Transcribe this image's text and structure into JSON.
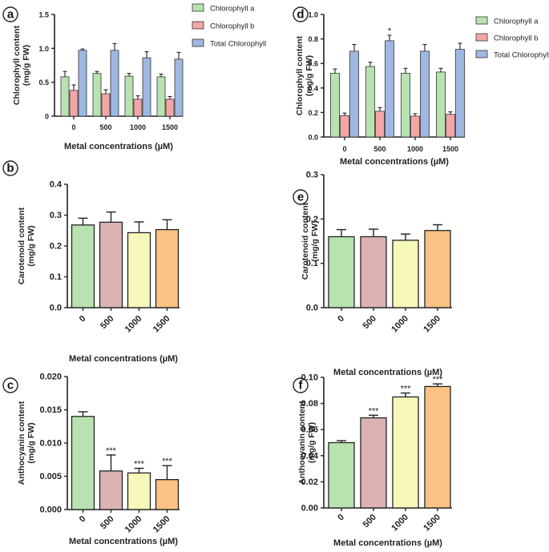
{
  "figure": {
    "chart_data": [
      {
        "panel": "a",
        "type": "bar",
        "title": "",
        "xlabel": "Metal concentrations (µM)",
        "ylabel": "Chlorophyll content (mg/g FW)",
        "ylabel_lines": [
          "Chlorophyll content",
          "(mg/g FW)"
        ],
        "categories": [
          "0",
          "500",
          "1000",
          "1500"
        ],
        "ylim": [
          0,
          1.5
        ],
        "yticks": [
          0,
          0.5,
          1.0,
          1.5
        ],
        "ytick_labels": [
          "0",
          "0.5",
          "1.0",
          "1.5"
        ],
        "legend": "right",
        "series": [
          {
            "name": "Chlorophyll a",
            "color": "#b8e3b0",
            "values": [
              0.58,
              0.63,
              0.59,
              0.58
            ],
            "errors": [
              0.08,
              0.03,
              0.04,
              0.04
            ],
            "significance": [
              "",
              "",
              "",
              ""
            ]
          },
          {
            "name": "Chlorophyll b",
            "color": "#f4a6a6",
            "values": [
              0.38,
              0.33,
              0.25,
              0.25
            ],
            "errors": [
              0.08,
              0.06,
              0.05,
              0.04
            ],
            "significance": [
              "",
              "",
              "",
              ""
            ]
          },
          {
            "name": "Total Chlorophyll",
            "color": "#9fb8e2",
            "values": [
              0.97,
              0.97,
              0.86,
              0.84
            ],
            "errors": [
              0.02,
              0.1,
              0.09,
              0.1
            ],
            "significance": [
              "",
              "",
              "",
              ""
            ]
          }
        ]
      },
      {
        "panel": "b",
        "type": "bar",
        "title": "",
        "xlabel": "Metal concentrations (µM)",
        "ylabel": "Carotenoid content (mg/g FW)",
        "ylabel_lines": [
          "Carotenoid content",
          "(mg/g FW)"
        ],
        "categories": [
          "0",
          "500",
          "1000",
          "1500"
        ],
        "ylim": [
          0,
          0.4
        ],
        "yticks": [
          0,
          0.1,
          0.2,
          0.3,
          0.4
        ],
        "ytick_labels": [
          "0.0",
          "0.1",
          "0.2",
          "0.3",
          "0.4"
        ],
        "legend": "none",
        "series": [
          {
            "name": "Carotenoid",
            "colors": [
              "#b8e3b0",
              "#dcb2b2",
              "#f5f8b8",
              "#fbc285"
            ],
            "values": [
              0.268,
              0.277,
              0.243,
              0.253
            ],
            "errors": [
              0.022,
              0.033,
              0.035,
              0.032
            ],
            "significance": [
              "",
              "",
              "",
              ""
            ]
          }
        ]
      },
      {
        "panel": "c",
        "type": "bar",
        "title": "",
        "xlabel": "Metal concentrations (µM)",
        "ylabel": "Anthocyanin content (mg/g FW)",
        "ylabel_lines": [
          "Anthocyanin content",
          "(mg/g FW)"
        ],
        "categories": [
          "0",
          "500",
          "1000",
          "1500"
        ],
        "ylim": [
          0,
          0.02
        ],
        "yticks": [
          0,
          0.005,
          0.01,
          0.015,
          0.02
        ],
        "ytick_labels": [
          "0.000",
          "0.005",
          "0.010",
          "0.015",
          "0.020"
        ],
        "legend": "none",
        "series": [
          {
            "name": "Anthocyanin",
            "colors": [
              "#b8e3b0",
              "#dcb2b2",
              "#f5f8b8",
              "#fbc285"
            ],
            "values": [
              0.014,
              0.0058,
              0.0055,
              0.0045
            ],
            "errors": [
              0.0007,
              0.0024,
              0.0007,
              0.0021
            ],
            "significance": [
              "",
              "***",
              "***",
              "***"
            ]
          }
        ]
      },
      {
        "panel": "d",
        "type": "bar",
        "title": "",
        "xlabel": "Metal concentrations (µM)",
        "ylabel": "Chlorophyll content (mg/g FW)",
        "ylabel_lines": [
          "Chlorophyll content",
          "(mg/g FW)"
        ],
        "categories": [
          "0",
          "500",
          "1000",
          "1500"
        ],
        "ylim": [
          0,
          1.0
        ],
        "yticks": [
          0,
          0.2,
          0.4,
          0.6,
          0.8,
          1.0
        ],
        "ytick_labels": [
          "0.0",
          "0.2",
          "0.4",
          "0.6",
          "0.8",
          "1.0"
        ],
        "legend": "right",
        "series": [
          {
            "name": "Chlorophyll a",
            "color": "#b8e3b0",
            "values": [
              0.52,
              0.575,
              0.52,
              0.53
            ],
            "errors": [
              0.035,
              0.035,
              0.04,
              0.03
            ],
            "significance": [
              "",
              "",
              "",
              ""
            ]
          },
          {
            "name": "Chlorophyll b",
            "color": "#f4a6a6",
            "values": [
              0.175,
              0.21,
              0.17,
              0.185
            ],
            "errors": [
              0.02,
              0.03,
              0.02,
              0.02
            ],
            "significance": [
              "",
              "",
              "",
              ""
            ]
          },
          {
            "name": "Total Chlorophyll",
            "color": "#9fb8e2",
            "values": [
              0.7,
              0.785,
              0.7,
              0.715
            ],
            "errors": [
              0.055,
              0.045,
              0.055,
              0.05
            ],
            "significance": [
              "",
              "*",
              "",
              ""
            ]
          }
        ]
      },
      {
        "panel": "e",
        "type": "bar",
        "title": "",
        "xlabel": "Metal concentrations (µM)",
        "ylabel": "Carotenoid content (mg/g FW)",
        "ylabel_lines": [
          "Carotenoid content",
          "(mg/g FW)"
        ],
        "categories": [
          "0",
          "500",
          "1000",
          "1500"
        ],
        "ylim": [
          0,
          0.3
        ],
        "yticks": [
          0,
          0.1,
          0.2,
          0.3
        ],
        "ytick_labels": [
          "0.0",
          "0.1",
          "0.2",
          "0.3"
        ],
        "legend": "none",
        "series": [
          {
            "name": "Carotenoid",
            "colors": [
              "#b8e3b0",
              "#dcb2b2",
              "#f5f8b8",
              "#fbc285"
            ],
            "values": [
              0.16,
              0.16,
              0.152,
              0.174
            ],
            "errors": [
              0.016,
              0.017,
              0.014,
              0.013
            ],
            "significance": [
              "",
              "",
              "",
              ""
            ]
          }
        ]
      },
      {
        "panel": "f",
        "type": "bar",
        "title": "",
        "xlabel": "Metal concentrations (µM)",
        "ylabel": "Anthocyanin content (mg/g FW)",
        "ylabel_lines": [
          "Anthocyanin content",
          "(mg/g FW)"
        ],
        "categories": [
          "0",
          "500",
          "1000",
          "1500"
        ],
        "ylim": [
          0,
          0.1
        ],
        "yticks": [
          0,
          0.02,
          0.04,
          0.06,
          0.08,
          0.1
        ],
        "ytick_labels": [
          "0.00",
          "0.02",
          "0.04",
          "0.06",
          "0.08",
          "0.10"
        ],
        "legend": "none",
        "series": [
          {
            "name": "Anthocyanin",
            "colors": [
              "#b8e3b0",
              "#dcb2b2",
              "#f5f8b8",
              "#fbc285"
            ],
            "values": [
              0.05,
              0.069,
              0.085,
              0.093
            ],
            "errors": [
              0.0015,
              0.002,
              0.003,
              0.002
            ],
            "significance": [
              "",
              "***",
              "***",
              "***"
            ]
          }
        ]
      }
    ]
  }
}
